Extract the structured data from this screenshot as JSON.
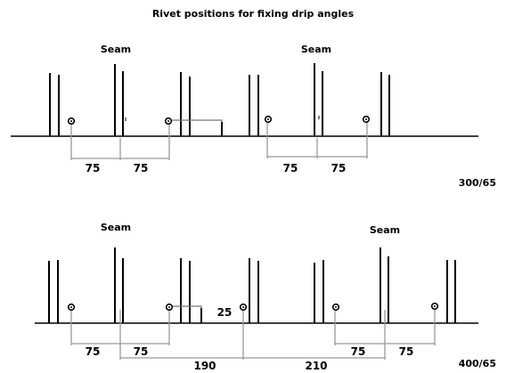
{
  "diagram": {
    "title": "Rivet positions for fixing drip angles",
    "top": {
      "seam_left": "Seam",
      "seam_right": "Seam",
      "dims": [
        "75",
        "75",
        "75",
        "75"
      ],
      "profile_code": "300/65"
    },
    "bottom": {
      "seam_left": "Seam",
      "seam_right": "Seam",
      "dims": [
        "75",
        "75",
        "25",
        "75",
        "75",
        "190",
        "210"
      ],
      "profile_code": "400/65"
    }
  }
}
